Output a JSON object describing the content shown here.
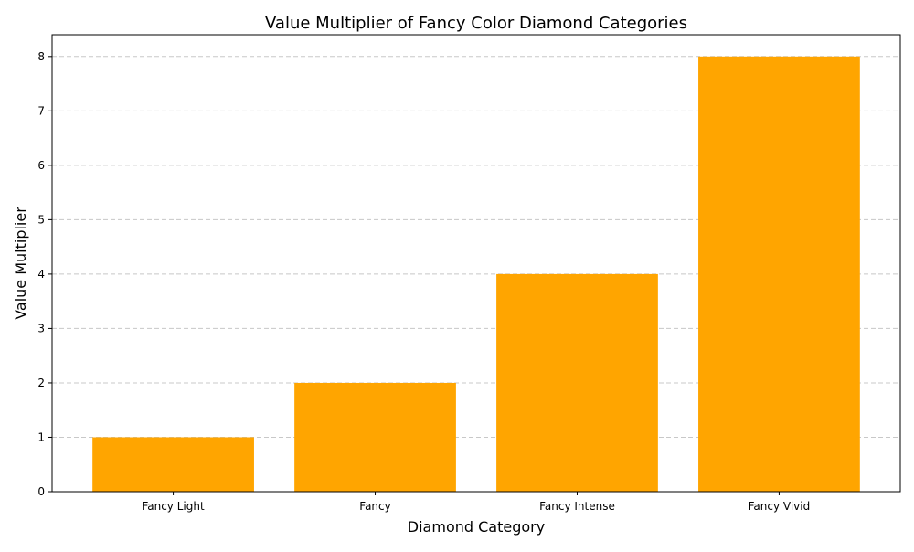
{
  "chart_data": {
    "type": "bar",
    "title": "Value Multiplier of Fancy Color Diamond Categories",
    "xlabel": "Diamond Category",
    "ylabel": "Value Multiplier",
    "categories": [
      "Fancy Light",
      "Fancy",
      "Fancy Intense",
      "Fancy Vivid"
    ],
    "values": [
      1,
      2,
      4,
      8
    ],
    "ylim": [
      0,
      8.4
    ],
    "yticks": [
      0,
      1,
      2,
      3,
      4,
      5,
      6,
      7,
      8
    ],
    "grid": "y-dashed",
    "bar_color": "#FFA500",
    "grid_color": "#c8c8c8"
  }
}
